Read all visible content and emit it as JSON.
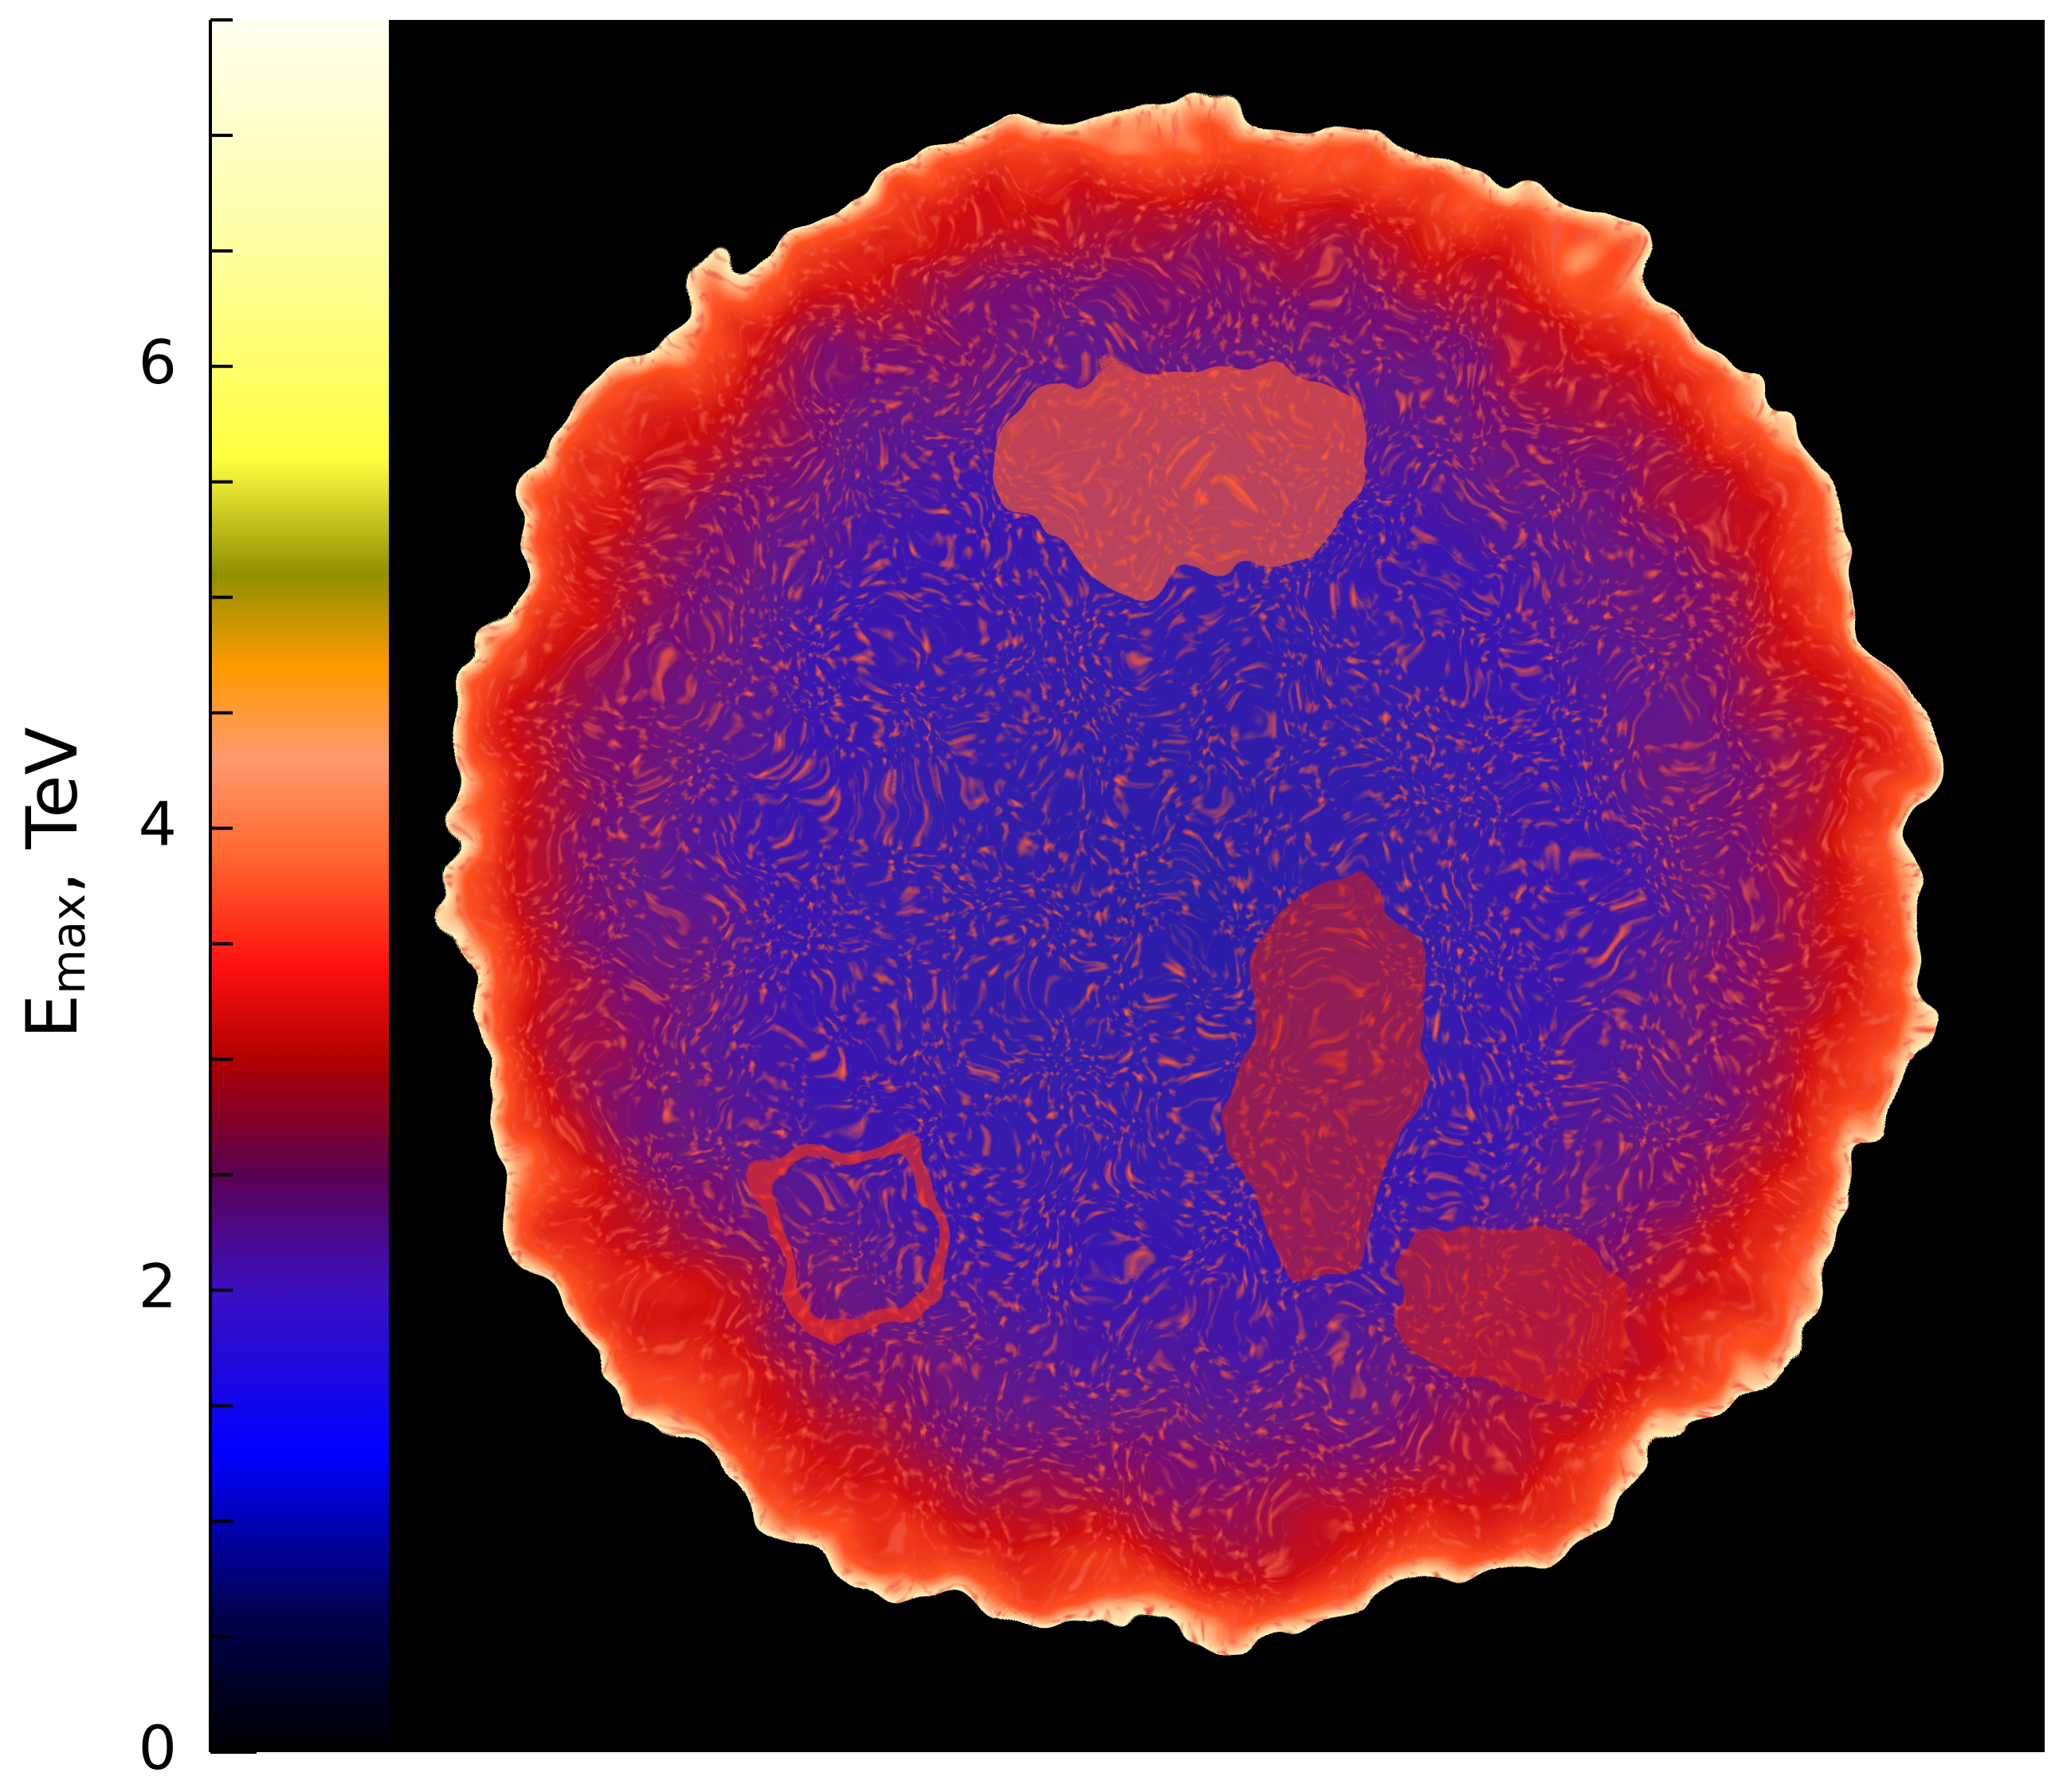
{
  "chart_data": {
    "type": "colorbar-map",
    "ylabel": {
      "main": "E",
      "sub": "max",
      "unit": ", TeV"
    },
    "ylim": [
      0,
      7.5
    ],
    "yticks": [
      0,
      2,
      4,
      6
    ],
    "minor_yticks": [
      0.5,
      1,
      1.5,
      2.5,
      3,
      3.5,
      4.5,
      5,
      5.5,
      6.5,
      7,
      7.5
    ],
    "colorscale": [
      [
        0,
        "#000000"
      ],
      [
        0.6,
        "#000050"
      ],
      [
        1.3,
        "#0000ff"
      ],
      [
        2,
        "#3a10c0"
      ],
      [
        2.5,
        "#5a0050"
      ],
      [
        3,
        "#b00000"
      ],
      [
        3.4,
        "#ff1010"
      ],
      [
        3.9,
        "#ff6a30"
      ],
      [
        4.3,
        "#ff9a70"
      ],
      [
        4.7,
        "#ff9a00"
      ],
      [
        5.1,
        "#909000"
      ],
      [
        5.6,
        "#ffff40"
      ],
      [
        6.5,
        "#ffffa0"
      ],
      [
        7.5,
        "#fffff0"
      ]
    ]
  }
}
